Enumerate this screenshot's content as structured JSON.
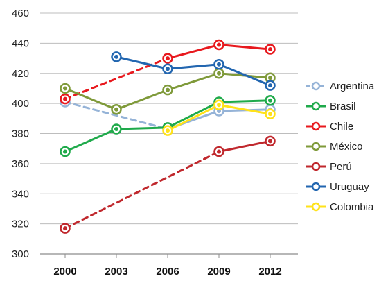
{
  "chart_data": {
    "type": "line",
    "title": "",
    "xlabel": "",
    "ylabel": "",
    "categories": [
      "2000",
      "2003",
      "2006",
      "2009",
      "2012"
    ],
    "ylim": [
      300,
      460
    ],
    "y_ticks": [
      300,
      320,
      340,
      360,
      380,
      400,
      420,
      440,
      460
    ],
    "grid": "horizontal",
    "legend_position": "right",
    "series": [
      {
        "name": "Argentina",
        "color": "#95b3d7",
        "values": [
          401,
          null,
          383,
          395,
          396
        ],
        "missing_style": "dashed"
      },
      {
        "name": "Brasil",
        "color": "#1faa4b",
        "values": [
          368,
          383,
          384,
          401,
          402
        ],
        "missing_style": "dashed"
      },
      {
        "name": "Chile",
        "color": "#e8191e",
        "values": [
          403,
          null,
          430,
          439,
          436
        ],
        "missing_style": "dashed"
      },
      {
        "name": "México",
        "color": "#7f9a3a",
        "values": [
          410,
          396,
          409,
          420,
          417
        ],
        "missing_style": "dashed"
      },
      {
        "name": "Perú",
        "color": "#c0282d",
        "values": [
          317,
          null,
          null,
          368,
          375
        ],
        "missing_style": "dashed"
      },
      {
        "name": "Uruguay",
        "color": "#2266b0",
        "values": [
          null,
          431,
          423,
          426,
          412
        ],
        "missing_style": "dashed"
      },
      {
        "name": "Colombia",
        "color": "#ffe21a",
        "values": [
          null,
          null,
          382,
          399,
          393
        ],
        "missing_style": "dashed"
      }
    ]
  }
}
